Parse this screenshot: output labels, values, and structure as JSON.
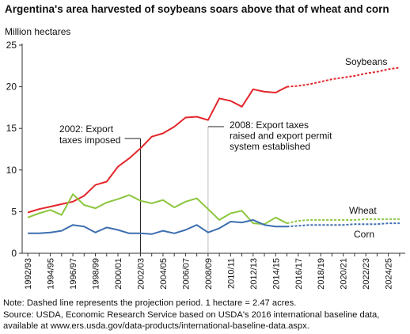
{
  "title": "Argentina's area harvested of soybeans soars above that of wheat and corn",
  "notes": [
    "Note: Dashed line represents the projection period. 1 hectare = 2.47 acres.",
    "Source: USDA, Economic Research Service based on USDA's 2016 international baseline data,",
    "available at www.ers.usda.gov/data-products/international-baseline-data.aspx."
  ],
  "chart_data": {
    "type": "line",
    "ylabel": "Million hectares",
    "xlabel": "",
    "ylim": [
      0,
      25
    ],
    "yticks": [
      0,
      5,
      10,
      15,
      20,
      25
    ],
    "grid": false,
    "categories": [
      "1992/93",
      "1993/94",
      "1994/95",
      "1995/96",
      "1996/97",
      "1997/98",
      "1998/99",
      "1999/00",
      "2000/01",
      "2001/02",
      "2002/03",
      "2003/04",
      "2004/05",
      "2005/06",
      "2006/07",
      "2007/08",
      "2008/09",
      "2009/10",
      "2010/11",
      "2011/12",
      "2012/13",
      "2013/14",
      "2014/15",
      "2015/16",
      "2016/17",
      "2017/18",
      "2018/19",
      "2019/20",
      "2020/21",
      "2021/22",
      "2022/23",
      "2023/24",
      "2024/25",
      "2025/26"
    ],
    "xtick_labels": [
      "1992/93",
      "1994/95",
      "1996/97",
      "1998/99",
      "2000/01",
      "2002/03",
      "2004/05",
      "2006/07",
      "2008/09",
      "2010/11",
      "2012/13",
      "2014/15",
      "2016/17",
      "2018/19",
      "2020/21",
      "2022/23",
      "2024/25"
    ],
    "projection_start": "2015/16",
    "series": [
      {
        "name": "Soybeans",
        "color": "#e3262b",
        "values": [
          4.9,
          5.3,
          5.6,
          5.9,
          6.2,
          6.9,
          8.2,
          8.6,
          10.4,
          11.4,
          12.6,
          14.0,
          14.4,
          15.2,
          16.3,
          16.4,
          16.0,
          18.6,
          18.3,
          17.6,
          19.7,
          19.4,
          19.3,
          20.0,
          20.1,
          20.3,
          20.6,
          20.9,
          21.1,
          21.3,
          21.6,
          21.8,
          22.1,
          22.3
        ]
      },
      {
        "name": "Wheat",
        "color": "#8cc63e",
        "values": [
          4.3,
          4.8,
          5.2,
          4.6,
          7.1,
          5.8,
          5.4,
          6.1,
          6.5,
          7.0,
          6.3,
          6.0,
          6.4,
          5.5,
          6.2,
          6.6,
          5.3,
          4.0,
          4.8,
          5.1,
          3.6,
          3.5,
          4.3,
          3.6,
          3.9,
          4.0,
          4.0,
          4.0,
          4.0,
          4.0,
          4.1,
          4.1,
          4.1,
          4.1
        ]
      },
      {
        "name": "Corn",
        "color": "#3e6fb0",
        "values": [
          2.4,
          2.4,
          2.5,
          2.7,
          3.4,
          3.2,
          2.5,
          3.1,
          2.8,
          2.4,
          2.4,
          2.3,
          2.7,
          2.4,
          2.8,
          3.4,
          2.5,
          3.0,
          3.8,
          3.7,
          4.0,
          3.4,
          3.2,
          3.2,
          3.3,
          3.4,
          3.4,
          3.4,
          3.4,
          3.5,
          3.5,
          3.5,
          3.6,
          3.6
        ]
      }
    ],
    "annotations": [
      {
        "text": [
          "2002: Export",
          "taxes imposed"
        ],
        "at": "2002/03"
      },
      {
        "text": [
          "2008: Export taxes",
          "raised and export permit",
          "system established"
        ],
        "at": "2008/09"
      }
    ]
  }
}
